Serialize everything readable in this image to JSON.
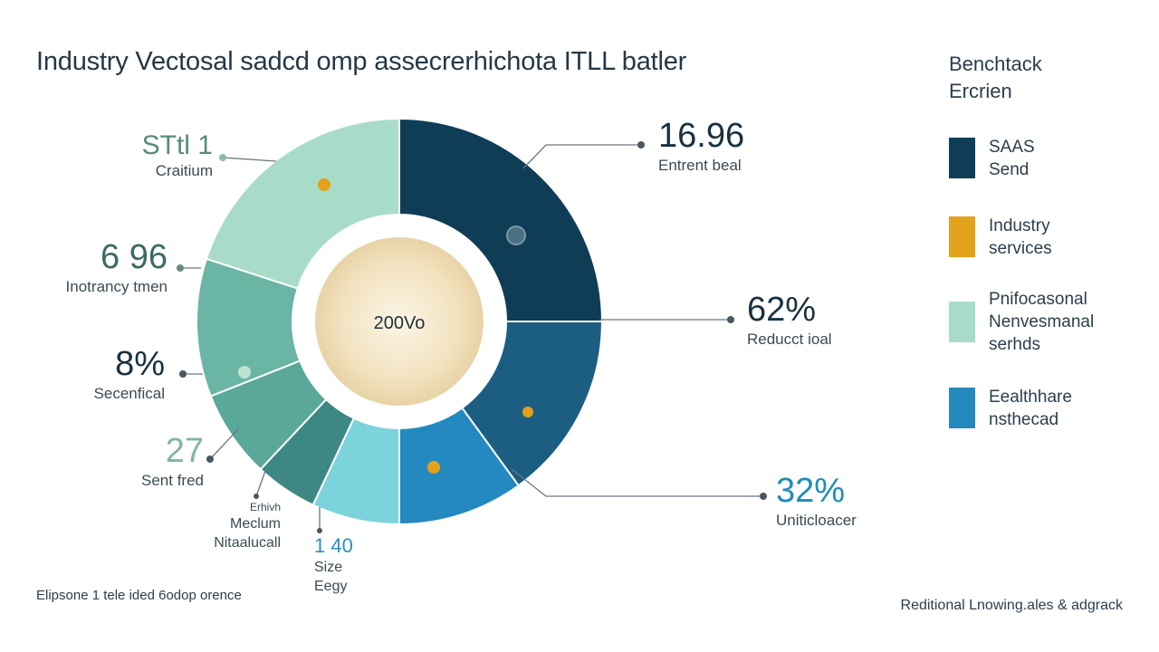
{
  "title": "Industry Vectosal sadcd omp assecrerhichota ITLL batler",
  "legend": {
    "title_lines": [
      "Benchtack",
      "Ercrien"
    ],
    "items": [
      {
        "lines": [
          "SAAS",
          "Send"
        ],
        "color": "#0f3d56"
      },
      {
        "lines": [
          "Industry",
          "services"
        ],
        "color": "#e4a11b"
      },
      {
        "lines": [
          "Pnifocasonal",
          "Nenvesmanal",
          "serhds"
        ],
        "color": "#a9dcc8"
      },
      {
        "lines": [
          "Eealthhare",
          "nsthecad"
        ],
        "color": "#2389bf"
      }
    ]
  },
  "callouts": {
    "top_right": {
      "value": "16.96",
      "label": "Entrent beal"
    },
    "mid_right": {
      "value": "62%",
      "label": "Reducct ioal"
    },
    "bottom_right": {
      "value": "32%",
      "label": "Uniticloacer"
    },
    "top_left": {
      "value": "STtl 1",
      "label": "Craitium"
    },
    "mid_left": {
      "value": "6 96",
      "label": "Inotrancy tmen"
    },
    "lower_left": {
      "value": "8%",
      "label": "Secenfical"
    },
    "bottom_left": {
      "value": "27",
      "label": "Sent fred"
    },
    "medium": {
      "lines": [
        "Erhivh",
        "Meclum",
        "Nitaalucall"
      ]
    },
    "size": {
      "value": "1 40",
      "lines": [
        "Size",
        "Eegy"
      ]
    }
  },
  "center_label": "200Vo",
  "footer": {
    "left": "Elipsone 1 tele ided 6odop orence",
    "right": "Reditional Lnowing.ales & adgrack"
  },
  "chart_data": {
    "type": "pie",
    "variant": "donut",
    "title": "Industry Vectosal sadcd omp assecrerhichota ITLL batler",
    "center_text": "200Vo",
    "legend_position": "right",
    "slices": [
      {
        "legend": "SAAS Send",
        "color": "#0f3d56",
        "value": 25
      },
      {
        "legend": "Eealthhare nsthecad",
        "color": "#1b5e82",
        "value": 15
      },
      {
        "legend": "",
        "color": "#2389bf",
        "value": 10
      },
      {
        "legend": "",
        "color": "#7dd3dc",
        "value": 7
      },
      {
        "legend": "",
        "color": "#3d8785",
        "value": 5
      },
      {
        "legend": "",
        "color": "#5aa89a",
        "value": 7
      },
      {
        "legend": "",
        "color": "#6bb5a5",
        "value": 11
      },
      {
        "legend": "Pnifocasonal Nenvesmanal serhds",
        "color": "#a9dcc8",
        "value": 20
      }
    ]
  }
}
